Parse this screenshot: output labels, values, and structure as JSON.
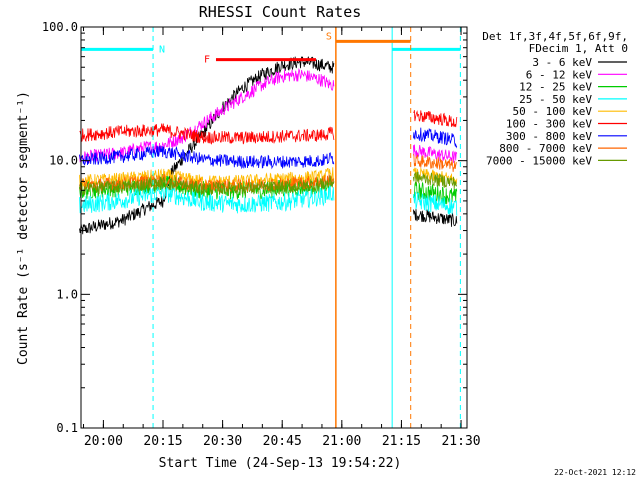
{
  "chart_data": {
    "type": "line",
    "title": "RHESSI Count Rates",
    "xlabel": "Start Time (24-Sep-13 19:54:22)",
    "ylabel": "Count Rate (s⁻¹ detector segment⁻¹)",
    "ylog": true,
    "xlim": [
      "19:54:22",
      "21:31:30"
    ],
    "ylim": [
      0.1,
      100.0
    ],
    "xticks": [
      "20:00",
      "20:15",
      "20:30",
      "20:45",
      "21:00",
      "21:15",
      "21:30"
    ],
    "yticks": [
      "0.1",
      "1.0",
      "10.0",
      "100.0"
    ],
    "grid": false,
    "legend_header": [
      "Det 1f,3f,4f,5f,6f,9f,",
      "FDecim 1, Att 0"
    ],
    "legend_position": "right",
    "colors": {
      "s3_6": "#000000",
      "s6_12": "#ff00ff",
      "s12_25": "#00cc00",
      "s25_50": "#00ffff",
      "s50_100": "#ffbb00",
      "s100_300": "#ff0000",
      "s300_800": "#0000ff",
      "s800_7000": "#ff6600",
      "s7000_15000": "#669900",
      "night": "#00ffff",
      "flare": "#ff0000",
      "saa": "#ff7700"
    },
    "data_gap": [
      "20:58",
      "21:18"
    ],
    "series": [
      {
        "id": "s3_6",
        "name": "3 - 6 keV",
        "color": "#000000",
        "x": [
          "19:54",
          "20:05",
          "20:08",
          "20:12",
          "20:15",
          "20:17",
          "20:20",
          "20:25",
          "20:30",
          "20:35",
          "20:40",
          "20:45",
          "20:50",
          "20:55",
          "20:57",
          "21:18",
          "21:25",
          "21:29"
        ],
        "y": [
          3.0,
          3.6,
          4.0,
          4.6,
          5.0,
          8.0,
          10.5,
          16,
          25,
          35,
          44,
          52,
          55,
          52,
          50,
          4.0,
          3.7,
          3.5
        ]
      },
      {
        "id": "s6_12",
        "name": "6 - 12 keV",
        "color": "#ff00ff",
        "x": [
          "19:54",
          "20:05",
          "20:10",
          "20:15",
          "20:20",
          "20:25",
          "20:30",
          "20:35",
          "20:40",
          "20:45",
          "20:50",
          "20:55",
          "20:57",
          "21:18",
          "21:25",
          "21:29"
        ],
        "y": [
          10.5,
          11.5,
          12.5,
          13,
          15,
          19,
          24,
          30,
          37,
          43,
          44,
          40,
          37,
          12.0,
          11.0,
          10.5
        ]
      },
      {
        "id": "s12_25",
        "name": "12 - 25 keV",
        "color": "#00cc00",
        "x": [
          "19:54",
          "20:05",
          "20:15",
          "20:25",
          "20:35",
          "20:45",
          "20:55",
          "20:57",
          "21:18",
          "21:25",
          "21:29"
        ],
        "y": [
          6.0,
          6.3,
          6.8,
          6.0,
          6.0,
          6.2,
          6.5,
          6.8,
          6.0,
          5.6,
          5.3
        ]
      },
      {
        "id": "s25_50",
        "name": "25 - 50 keV",
        "color": "#00ffff",
        "x": [
          "19:54",
          "20:05",
          "20:15",
          "20:25",
          "20:35",
          "20:45",
          "20:55",
          "20:57",
          "21:18",
          "21:25",
          "21:29"
        ],
        "y": [
          4.6,
          5.1,
          5.8,
          4.9,
          4.7,
          4.9,
          5.4,
          5.7,
          5.0,
          4.7,
          4.5
        ]
      },
      {
        "id": "s50_100",
        "name": "50 - 100 keV",
        "color": "#ffbb00",
        "x": [
          "19:54",
          "20:05",
          "20:15",
          "20:25",
          "20:35",
          "20:45",
          "20:55",
          "20:57",
          "21:18",
          "21:25",
          "21:29"
        ],
        "y": [
          7.0,
          7.3,
          7.8,
          7.0,
          7.0,
          7.3,
          7.6,
          8.0,
          8.0,
          7.5,
          7.2
        ]
      },
      {
        "id": "s100_300",
        "name": "100 - 300 keV",
        "color": "#ff0000",
        "x": [
          "19:54",
          "20:05",
          "20:15",
          "20:25",
          "20:35",
          "20:45",
          "20:55",
          "20:57",
          "21:18",
          "21:25",
          "21:29"
        ],
        "y": [
          15.5,
          16.5,
          17.0,
          15.0,
          14.8,
          15.2,
          15.5,
          16.0,
          22.0,
          20.5,
          19.0
        ]
      },
      {
        "id": "s300_800",
        "name": "300 - 800 keV",
        "color": "#0000ff",
        "x": [
          "19:54",
          "20:05",
          "20:15",
          "20:25",
          "20:35",
          "20:45",
          "20:55",
          "20:57",
          "21:18",
          "21:25",
          "21:29"
        ],
        "y": [
          10.0,
          10.8,
          11.8,
          10.2,
          9.8,
          9.8,
          10.0,
          10.4,
          16.0,
          15.0,
          14.0
        ]
      },
      {
        "id": "s800_7000",
        "name": "800 - 7000 keV",
        "color": "#ff6600",
        "x": [
          "19:54",
          "20:05",
          "20:15",
          "20:25",
          "20:35",
          "20:45",
          "20:55",
          "20:57",
          "21:18",
          "21:25",
          "21:29"
        ],
        "y": [
          6.5,
          6.8,
          7.1,
          6.5,
          6.5,
          6.7,
          7.0,
          7.2,
          10.0,
          9.5,
          9.0
        ]
      },
      {
        "id": "s7000_15000",
        "name": "7000 - 15000 keV",
        "color": "#669900",
        "x": [
          "19:54",
          "20:05",
          "20:15",
          "20:25",
          "20:35",
          "20:45",
          "20:55",
          "20:57",
          "21:18",
          "21:25",
          "21:29"
        ],
        "y": [
          6.2,
          6.4,
          6.8,
          6.2,
          6.2,
          6.3,
          6.6,
          6.9,
          7.5,
          7.1,
          6.8
        ]
      }
    ],
    "annotations": [
      {
        "type": "night",
        "label": "N",
        "start": "19:54:22",
        "end": "20:12:30",
        "color": "#00ffff",
        "level": 68
      },
      {
        "type": "night",
        "label": "",
        "start": "21:12:40",
        "end": "21:29:50",
        "color": "#00ffff",
        "level": 68
      },
      {
        "type": "flare",
        "label": "F",
        "start": "20:28:20",
        "end": "20:53:30",
        "color": "#ff0000",
        "level": 57
      },
      {
        "type": "saa",
        "label": "S",
        "start": "20:58:30",
        "end": "21:17:20",
        "color": "#ff7700",
        "level": 78
      }
    ]
  },
  "footer": {
    "date": "22-Oct-2021 12:12"
  }
}
